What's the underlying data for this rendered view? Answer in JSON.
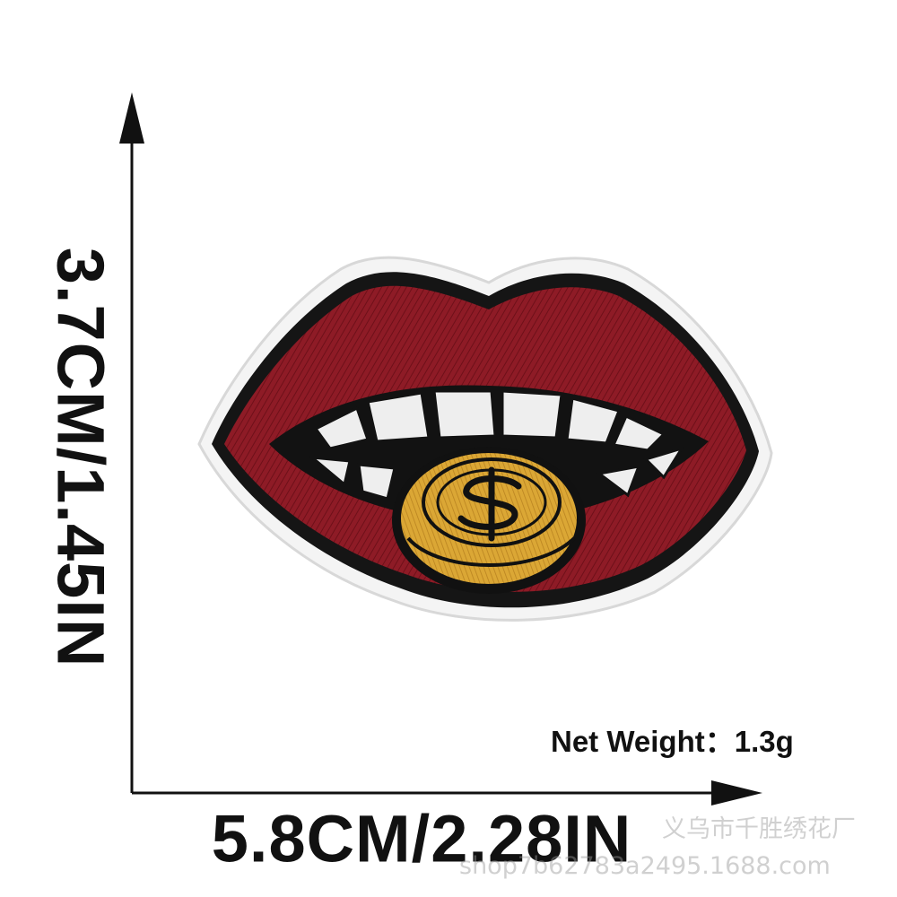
{
  "dimensions": {
    "height_text": "3.7CM/1.45IN",
    "width_text": "5.8CM/2.28IN"
  },
  "net_weight": "Net Weight：1.3g",
  "watermark": {
    "shop_name": "义乌市千胜绣花厂",
    "url": "shop7b62783a2495.1688.com"
  },
  "product": {
    "subject": "embroidered lips patch",
    "colors": {
      "lips": "#8e1b26",
      "outline": "#121212",
      "backing": "#f6f6f6",
      "teeth": "#efefef",
      "coin": "#d9a332"
    }
  },
  "icons": {
    "coin_symbol": "dollar-sign-icon",
    "arrow_up": "arrow-up-icon",
    "arrow_right": "arrow-right-icon"
  }
}
